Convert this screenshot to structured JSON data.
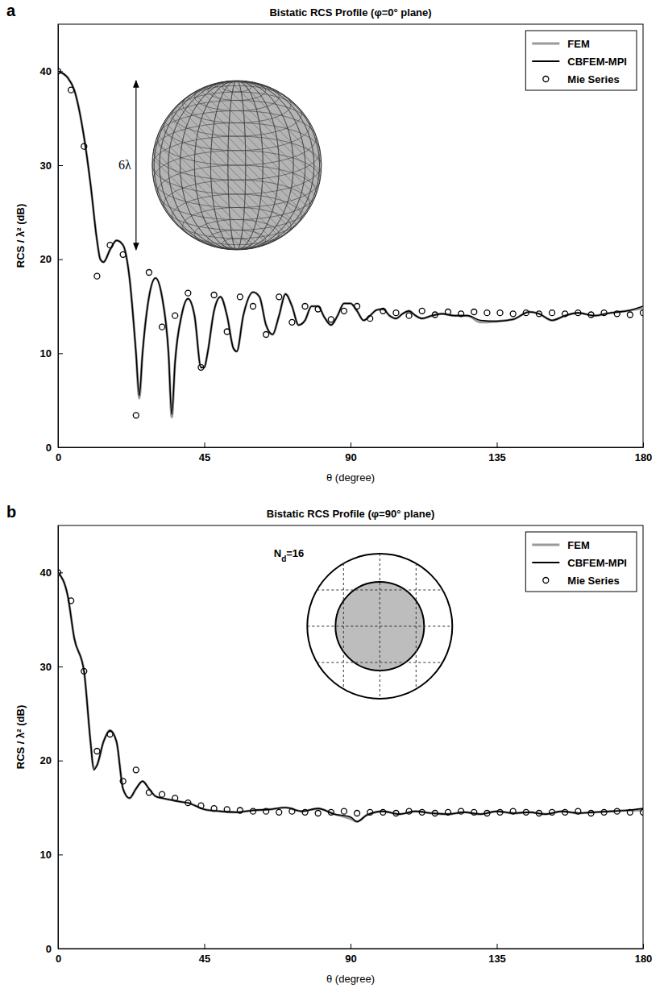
{
  "chart_data": [
    {
      "type": "line",
      "panel_label": "a",
      "title": "Bistatic RCS Profile (φ=0° plane)",
      "x_label": "θ (degree)",
      "y_label": "RCS / λ² (dB)",
      "annotation": "6λ",
      "xlim": [
        0,
        180
      ],
      "xticks": [
        0,
        45,
        90,
        135,
        180
      ],
      "ylim": [
        0,
        45
      ],
      "yticks": [
        0,
        10,
        20,
        30,
        40
      ],
      "grid": false,
      "legend": "upper right",
      "series": [
        {
          "name": "FEM",
          "type": "line",
          "color": "#9a9a9a",
          "x": [
            0,
            3,
            5,
            8,
            10,
            12,
            13,
            14,
            16,
            18,
            20,
            22,
            24,
            25,
            26,
            28,
            30,
            32,
            34,
            35,
            36,
            38,
            40,
            42,
            44,
            45,
            46,
            48,
            50,
            52,
            54,
            55,
            57,
            60,
            62,
            64,
            66,
            68,
            70,
            72,
            74,
            76,
            78,
            80,
            82,
            84,
            86,
            88,
            90,
            92,
            94,
            96,
            98,
            100,
            102,
            104,
            106,
            108,
            110,
            112,
            115,
            118,
            122,
            126,
            130,
            135,
            140,
            145,
            148,
            152,
            156,
            160,
            165,
            170,
            175,
            180
          ],
          "values": [
            40,
            39.3,
            38,
            33,
            28,
            22,
            20,
            19.7,
            21,
            22,
            21.5,
            18,
            10,
            5.2,
            10,
            16,
            18,
            16,
            10,
            3.2,
            9,
            14,
            15.8,
            14,
            8.5,
            8.5,
            10,
            14.5,
            16,
            14,
            10.5,
            10.2,
            14,
            16.5,
            16,
            13,
            12,
            14,
            16.3,
            15,
            13,
            13.5,
            15,
            15,
            13.8,
            13,
            14,
            15.3,
            15.3,
            14.5,
            13.5,
            14,
            14.6,
            14.7,
            14,
            13.7,
            14.2,
            14.5,
            14,
            13.7,
            14,
            14.2,
            14,
            14,
            13.3,
            13.4,
            13.6,
            14.4,
            14.2,
            13.5,
            14,
            14.3,
            14,
            14.3,
            14.5,
            14.8
          ]
        },
        {
          "name": "CBFEM-MPI",
          "type": "line",
          "color": "#000000",
          "x": [
            0,
            3,
            5,
            8,
            10,
            12,
            13,
            14,
            16,
            18,
            20,
            22,
            24,
            25,
            26,
            28,
            30,
            32,
            34,
            35,
            36,
            38,
            40,
            42,
            44,
            45,
            46,
            48,
            50,
            52,
            54,
            55,
            57,
            60,
            62,
            64,
            66,
            68,
            70,
            72,
            74,
            76,
            78,
            80,
            82,
            84,
            86,
            88,
            90,
            92,
            94,
            96,
            98,
            100,
            102,
            104,
            106,
            108,
            110,
            112,
            115,
            118,
            122,
            126,
            130,
            135,
            140,
            145,
            148,
            152,
            156,
            160,
            165,
            170,
            175,
            180
          ],
          "values": [
            40,
            39.3,
            38,
            33,
            28,
            22,
            20,
            19.7,
            21,
            22,
            21.5,
            18,
            10,
            5.5,
            10,
            16,
            18,
            16,
            10,
            3.5,
            9,
            14,
            15.8,
            14,
            8.5,
            8.5,
            10,
            14.5,
            16,
            14,
            10.5,
            10.2,
            14,
            16.5,
            16,
            13,
            12,
            14,
            16.3,
            15,
            13,
            13.5,
            15,
            15,
            13.8,
            13,
            14,
            15.3,
            15.3,
            14.5,
            13.5,
            14,
            14.6,
            14.7,
            14,
            13.7,
            14.2,
            14.5,
            14,
            13.7,
            14,
            14.2,
            14,
            14,
            13.5,
            13.4,
            13.6,
            14.4,
            14.2,
            13.5,
            14,
            14.3,
            14,
            14.3,
            14.5,
            15
          ]
        },
        {
          "name": "Mie Series",
          "type": "scatter",
          "marker": "circle",
          "color": "#000000",
          "x": [
            0,
            4,
            8,
            12,
            16,
            20,
            24,
            28,
            32,
            36,
            40,
            44,
            48,
            52,
            56,
            60,
            64,
            68,
            72,
            76,
            80,
            84,
            88,
            92,
            96,
            100,
            104,
            108,
            112,
            116,
            120,
            124,
            128,
            132,
            136,
            140,
            144,
            148,
            152,
            156,
            160,
            164,
            168,
            172,
            176,
            180
          ],
          "values": [
            40,
            38,
            32,
            18.2,
            21.5,
            20.5,
            3.4,
            18.6,
            12.8,
            14,
            16.4,
            8.5,
            16.2,
            12.3,
            16,
            15,
            12,
            16,
            13.3,
            15,
            14.7,
            13.6,
            14.5,
            15,
            13.7,
            14.5,
            14.3,
            14,
            14.5,
            14.1,
            14.4,
            14.2,
            14.4,
            14.3,
            14.3,
            14.2,
            14.3,
            14.2,
            14.3,
            14.2,
            14.3,
            14.1,
            14.3,
            14.2,
            14.1,
            14.3
          ]
        }
      ]
    },
    {
      "type": "line",
      "panel_label": "b",
      "title": "Bistatic RCS Profile (φ=90° plane)",
      "x_label": "θ (degree)",
      "y_label": "RCS / λ² (dB)",
      "annotation": "Nd=16",
      "xlim": [
        0,
        180
      ],
      "xticks": [
        0,
        45,
        90,
        135,
        180
      ],
      "ylim": [
        0,
        45
      ],
      "yticks": [
        0,
        10,
        20,
        30,
        40
      ],
      "grid": false,
      "legend": "upper right",
      "series": [
        {
          "name": "FEM",
          "type": "line",
          "color": "#9a9a9a",
          "x": [
            0,
            3,
            5,
            8,
            10,
            11,
            12,
            14,
            16,
            18,
            20,
            22,
            24,
            26,
            28,
            30,
            32,
            35,
            38,
            40,
            45,
            50,
            55,
            60,
            65,
            70,
            75,
            80,
            85,
            90,
            92,
            95,
            100,
            105,
            110,
            115,
            120,
            125,
            130,
            135,
            140,
            145,
            150,
            155,
            160,
            165,
            170,
            175,
            180
          ],
          "values": [
            40,
            37.5,
            33,
            29.5,
            22,
            19.2,
            19.5,
            22,
            23.2,
            22,
            17,
            16,
            17,
            17.8,
            17,
            16.2,
            16,
            15.8,
            15.6,
            15.5,
            14.8,
            14.6,
            14.5,
            14.7,
            14.8,
            15,
            14.6,
            14.9,
            14.3,
            13.8,
            13.5,
            14.2,
            14.6,
            14.3,
            14.6,
            14.4,
            14.3,
            14.5,
            14.3,
            14.6,
            14.4,
            14.5,
            14.3,
            14.6,
            14.4,
            14.5,
            14.6,
            14.7,
            14.7
          ]
        },
        {
          "name": "CBFEM-MPI",
          "type": "line",
          "color": "#000000",
          "x": [
            0,
            3,
            5,
            8,
            10,
            11,
            12,
            14,
            16,
            18,
            20,
            22,
            24,
            26,
            28,
            30,
            32,
            35,
            38,
            40,
            45,
            50,
            55,
            60,
            65,
            70,
            75,
            80,
            85,
            90,
            92,
            95,
            100,
            105,
            110,
            115,
            120,
            125,
            130,
            135,
            140,
            145,
            150,
            155,
            160,
            165,
            170,
            175,
            180
          ],
          "values": [
            40,
            37.5,
            33,
            29.5,
            22,
            19,
            19.5,
            22,
            23.2,
            22,
            17,
            16,
            17,
            17.8,
            17,
            16.2,
            16,
            15.8,
            15.6,
            15.5,
            14.8,
            14.6,
            14.5,
            14.7,
            14.8,
            15,
            14.6,
            14.9,
            14.3,
            14,
            13.5,
            14.2,
            14.6,
            14.3,
            14.6,
            14.4,
            14.3,
            14.5,
            14.3,
            14.6,
            14.4,
            14.5,
            14.3,
            14.6,
            14.4,
            14.5,
            14.6,
            14.7,
            14.9
          ]
        },
        {
          "name": "Mie Series",
          "type": "scatter",
          "marker": "circle",
          "color": "#000000",
          "x": [
            0,
            4,
            8,
            12,
            16,
            20,
            24,
            28,
            32,
            36,
            40,
            44,
            48,
            52,
            56,
            60,
            64,
            68,
            72,
            76,
            80,
            84,
            88,
            92,
            96,
            100,
            104,
            108,
            112,
            116,
            120,
            124,
            128,
            132,
            136,
            140,
            144,
            148,
            152,
            156,
            160,
            164,
            168,
            172,
            176,
            180
          ],
          "values": [
            40,
            37,
            29.5,
            21,
            22.8,
            17.8,
            19,
            16.6,
            16.4,
            16,
            15.5,
            15.2,
            14.9,
            14.8,
            14.7,
            14.6,
            14.6,
            14.5,
            14.6,
            14.5,
            14.4,
            14.5,
            14.6,
            14.4,
            14.5,
            14.5,
            14.4,
            14.6,
            14.5,
            14.4,
            14.5,
            14.6,
            14.5,
            14.4,
            14.5,
            14.6,
            14.5,
            14.4,
            14.5,
            14.5,
            14.6,
            14.4,
            14.5,
            14.6,
            14.5,
            14.5
          ]
        }
      ]
    }
  ]
}
